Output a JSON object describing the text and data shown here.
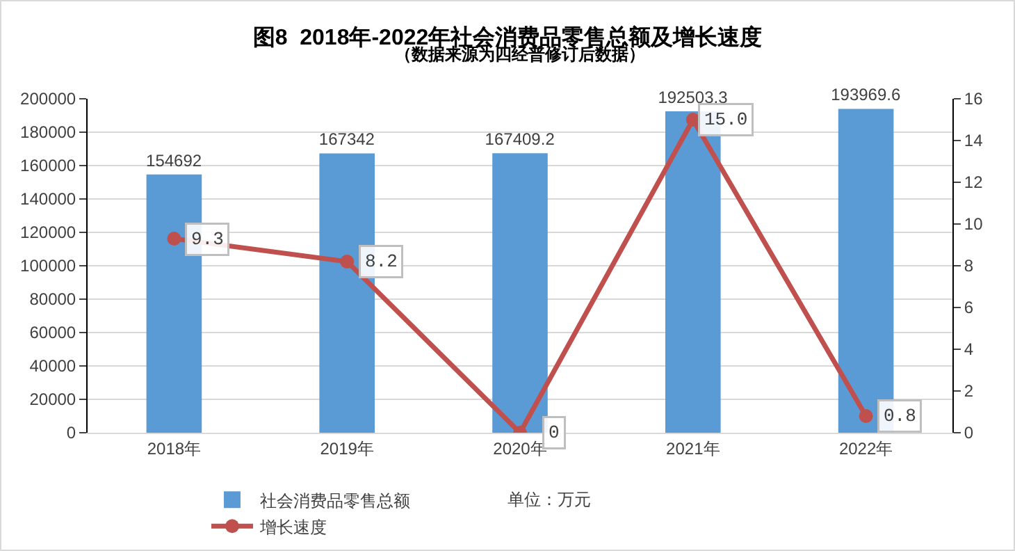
{
  "chart_data": {
    "type": "bar",
    "title": "图8  2018年-2022年社会消费品零售总额及增长速度",
    "subtitle": "（数据来源为四经普修订后数据）",
    "categories": [
      "2018年",
      "2019年",
      "2020年",
      "2021年",
      "2022年"
    ],
    "series": [
      {
        "name": "社会消费品零售总额",
        "color": "#5b9bd5",
        "values": [
          154692,
          167342,
          167409.2,
          192503.3,
          193969.6
        ]
      },
      {
        "name": "增长速度",
        "type": "line",
        "axis": "y2",
        "color": "#c0504d",
        "marker": "circle",
        "values": [
          9.3,
          8.2,
          0,
          15.0,
          0.8
        ],
        "value_labels": [
          "9.3",
          "8.2",
          "0",
          "15.0",
          "0.8"
        ]
      }
    ],
    "ylim": [
      0,
      200000
    ],
    "yticks": [
      0,
      20000,
      40000,
      60000,
      80000,
      100000,
      120000,
      140000,
      160000,
      180000,
      200000
    ],
    "y2lim": [
      0,
      16
    ],
    "y2ticks": [
      0,
      2,
      4,
      6,
      8,
      10,
      12,
      14,
      16
    ],
    "data_labels": true,
    "grid": "y",
    "legend": "bottom",
    "annotations": [
      "单位：万元"
    ]
  }
}
